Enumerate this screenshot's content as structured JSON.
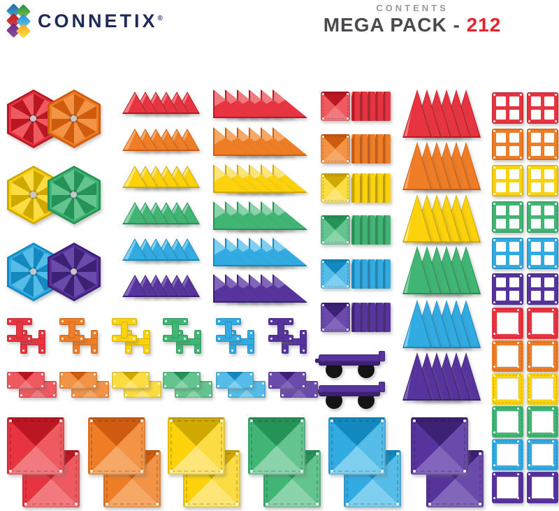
{
  "header": {
    "brand": "CONNETIX",
    "registered_mark": "®",
    "contents_label": "CONTENTS",
    "pack_name": "MEGA PACK - ",
    "pack_count": "212",
    "brand_color": "#1e2b5a",
    "contents_color": "#9a9a9d",
    "pack_name_color": "#4a4a4c",
    "pack_count_color": "#e5232d"
  },
  "logo_diamonds": [
    {
      "name": "blue",
      "from": "#2b5fa8",
      "to": "#36b7cf"
    },
    {
      "name": "green",
      "from": "#1f8a4c",
      "to": "#8dc63f"
    },
    {
      "name": "red",
      "from": "#b01f24",
      "to": "#e74047"
    },
    {
      "name": "light-blue",
      "from": "#2a8fd0",
      "to": "#5ec8f2"
    },
    {
      "name": "purple",
      "from": "#5c2d83",
      "to": "#9a4ea0"
    },
    {
      "name": "yellow",
      "from": "#f7a11a",
      "to": "#fde74c"
    }
  ],
  "palette": [
    {
      "name": "red",
      "main": "#e73440",
      "dark": "#bb1722",
      "light": "#f2797d",
      "soft": "#ee5a60"
    },
    {
      "name": "orange",
      "main": "#ef7d26",
      "dark": "#cf5c0e",
      "light": "#f6a866",
      "soft": "#f29346"
    },
    {
      "name": "yellow",
      "main": "#fbd20b",
      "dark": "#cfa900",
      "light": "#fde677",
      "soft": "#fcdc43"
    },
    {
      "name": "green",
      "main": "#41b573",
      "dark": "#259257",
      "light": "#8ad3ab",
      "soft": "#63c48f"
    },
    {
      "name": "blue",
      "main": "#31abe2",
      "dark": "#1489bf",
      "light": "#7fd0f0",
      "soft": "#55bce8"
    },
    {
      "name": "purple",
      "main": "#57349d",
      "dark": "#3d2175",
      "light": "#8166bb",
      "soft": "#6a4bac"
    }
  ],
  "pieces": {
    "hexagons": {
      "label": "hexagon",
      "pairs": [
        [
          "red",
          "orange"
        ],
        [
          "yellow",
          "green"
        ],
        [
          "blue",
          "purple"
        ]
      ],
      "count": 6
    },
    "small_triangles": {
      "label": "small-triangle",
      "colors": [
        "red",
        "orange",
        "yellow",
        "green",
        "blue",
        "purple"
      ],
      "per_row": 6,
      "count": 36
    },
    "right_triangles": {
      "label": "right-triangle",
      "colors": [
        "red",
        "orange",
        "yellow",
        "green",
        "blue",
        "purple"
      ],
      "per_row": 6,
      "count": 36
    },
    "small_squares": {
      "label": "small-square",
      "colors": [
        "red",
        "orange",
        "yellow",
        "green",
        "blue",
        "purple"
      ],
      "per_row": 6,
      "count": 36
    },
    "tall_triangles": {
      "label": "tall-triangle",
      "colors": [
        "red",
        "orange",
        "yellow",
        "green",
        "blue",
        "purple"
      ],
      "per_row": 6,
      "count": 36
    },
    "window_squares": {
      "label": "window-square",
      "colors": [
        "red",
        "orange",
        "yellow",
        "green",
        "blue",
        "purple"
      ],
      "per_color": 2,
      "count": 12
    },
    "h_clips": {
      "label": "h-clip",
      "colors": [
        "red",
        "orange",
        "yellow",
        "green",
        "blue",
        "purple"
      ],
      "per_color": 2,
      "count": 12
    },
    "rectangles": {
      "label": "small-rectangle",
      "colors": [
        "red",
        "orange",
        "yellow",
        "green",
        "blue",
        "purple"
      ],
      "per_color": 2,
      "count": 12
    },
    "car_bases": {
      "label": "car-base",
      "color": "purple",
      "wheel_color": "#141414",
      "count": 2
    },
    "large_squares": {
      "label": "large-square",
      "colors": [
        "red",
        "orange",
        "yellow",
        "green",
        "blue",
        "purple"
      ],
      "per_color": 2,
      "count": 12
    },
    "border_squares": {
      "label": "border-square",
      "colors": [
        "red",
        "orange",
        "yellow",
        "green",
        "blue",
        "purple"
      ],
      "per_color": 2,
      "count": 12
    }
  },
  "total_pieces": "212"
}
